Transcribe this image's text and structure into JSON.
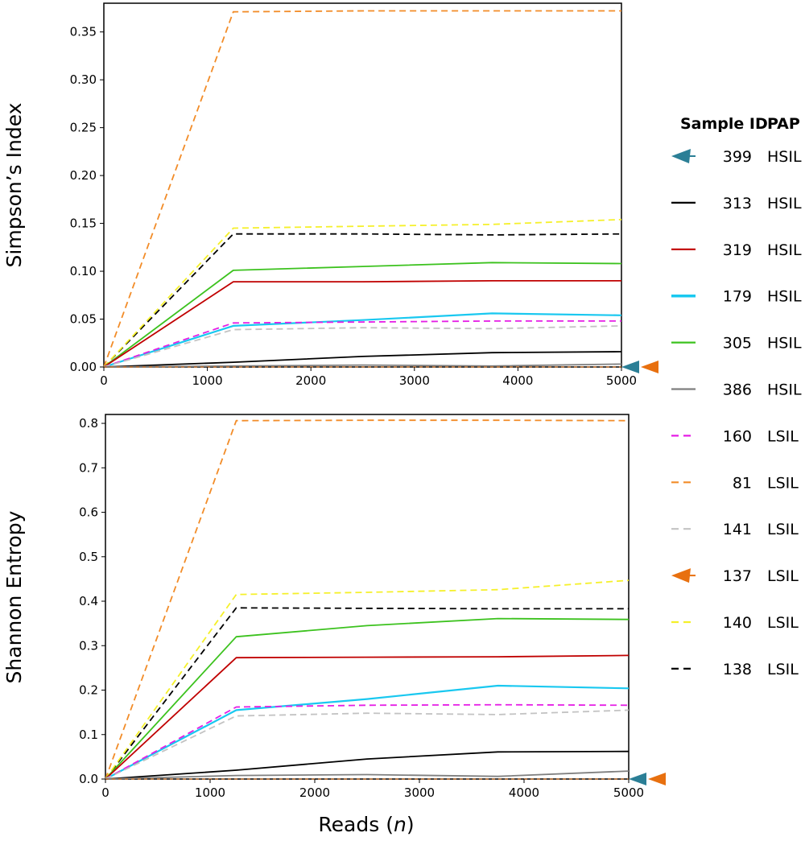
{
  "legend": {
    "header_id": "Sample ID",
    "header_pap": "PAP",
    "entries": [
      {
        "id": "399",
        "pap": "HSIL",
        "color": "#2b7f96",
        "dash": "marker"
      },
      {
        "id": "313",
        "pap": "HSIL",
        "color": "#000000",
        "dash": "solid"
      },
      {
        "id": "319",
        "pap": "HSIL",
        "color": "#c00000",
        "dash": "solid"
      },
      {
        "id": "179",
        "pap": "HSIL",
        "color": "#19c8f0",
        "dash": "solid"
      },
      {
        "id": "305",
        "pap": "HSIL",
        "color": "#3cc21e",
        "dash": "solid"
      },
      {
        "id": "386",
        "pap": "HSIL",
        "color": "#7f7f7f",
        "dash": "solid"
      },
      {
        "id": "160",
        "pap": "LSIL",
        "color": "#e51ee5",
        "dash": "dashed"
      },
      {
        "id": "81",
        "pap": "LSIL",
        "color": "#f28c28",
        "dash": "dashed"
      },
      {
        "id": "141",
        "pap": "LSIL",
        "color": "#c3c3c3",
        "dash": "dashed"
      },
      {
        "id": "137",
        "pap": "LSIL",
        "color": "#e8700f",
        "dash": "marker"
      },
      {
        "id": "140",
        "pap": "LSIL",
        "color": "#f5f02a",
        "dash": "dashed"
      },
      {
        "id": "138",
        "pap": "LSIL",
        "color": "#000000",
        "dash": "dashed"
      }
    ]
  },
  "chart_data": [
    {
      "type": "line",
      "ylabel": "Simpson’s Index",
      "xlabel": "",
      "xlim": [
        0,
        5000
      ],
      "ylim": [
        0,
        0.38
      ],
      "xticks": [
        0,
        1000,
        2000,
        3000,
        4000,
        5000
      ],
      "xtick_labels": [
        "0",
        "1000",
        "2000",
        "3000",
        "4000",
        "5000"
      ],
      "yticks": [
        0,
        0.05,
        0.1,
        0.15,
        0.2,
        0.25,
        0.3,
        0.35
      ],
      "ytick_labels": [
        "0.00",
        "0.05",
        "0.10",
        "0.15",
        "0.20",
        "0.25",
        "0.30",
        "0.35"
      ],
      "x": [
        0,
        1250,
        2500,
        3750,
        5000
      ],
      "series": [
        {
          "name": "399",
          "values": [
            0,
            0,
            0,
            0,
            0
          ]
        },
        {
          "name": "313",
          "values": [
            0,
            0.005,
            0.011,
            0.015,
            0.016
          ]
        },
        {
          "name": "319",
          "values": [
            0,
            0.089,
            0.089,
            0.09,
            0.09
          ]
        },
        {
          "name": "179",
          "values": [
            0,
            0.043,
            0.049,
            0.056,
            0.054
          ]
        },
        {
          "name": "305",
          "values": [
            0,
            0.101,
            0.105,
            0.109,
            0.108
          ]
        },
        {
          "name": "386",
          "values": [
            0,
            0.001,
            0.002,
            0.001,
            0.003
          ]
        },
        {
          "name": "160",
          "values": [
            0,
            0.046,
            0.047,
            0.048,
            0.048
          ]
        },
        {
          "name": "81",
          "values": [
            0,
            0.371,
            0.372,
            0.372,
            0.372
          ]
        },
        {
          "name": "141",
          "values": [
            0,
            0.039,
            0.041,
            0.04,
            0.043
          ]
        },
        {
          "name": "137",
          "values": [
            0,
            0,
            0,
            0,
            0
          ]
        },
        {
          "name": "140",
          "values": [
            0,
            0.145,
            0.147,
            0.149,
            0.154
          ]
        },
        {
          "name": "138",
          "values": [
            0,
            0.139,
            0.139,
            0.138,
            0.139
          ]
        }
      ]
    },
    {
      "type": "line",
      "ylabel": "Shannon Entropy",
      "xlabel": "Reads (n)",
      "xlim": [
        0,
        5000
      ],
      "ylim": [
        0,
        0.82
      ],
      "xticks": [
        0,
        1000,
        2000,
        3000,
        4000,
        5000
      ],
      "xtick_labels": [
        "0",
        "1000",
        "2000",
        "3000",
        "4000",
        "5000"
      ],
      "yticks": [
        0,
        0.1,
        0.2,
        0.3,
        0.4,
        0.5,
        0.6,
        0.7,
        0.8
      ],
      "ytick_labels": [
        "0.0",
        "0.1",
        "0.2",
        "0.3",
        "0.4",
        "0.5",
        "0.6",
        "0.7",
        "0.8"
      ],
      "x": [
        0,
        1250,
        2500,
        3750,
        5000
      ],
      "series": [
        {
          "name": "399",
          "values": [
            0,
            0,
            0,
            0,
            0
          ]
        },
        {
          "name": "313",
          "values": [
            0,
            0.02,
            0.045,
            0.061,
            0.062
          ]
        },
        {
          "name": "319",
          "values": [
            0,
            0.273,
            0.274,
            0.275,
            0.278
          ]
        },
        {
          "name": "179",
          "values": [
            0,
            0.155,
            0.18,
            0.21,
            0.204
          ]
        },
        {
          "name": "305",
          "values": [
            0,
            0.32,
            0.345,
            0.361,
            0.359
          ]
        },
        {
          "name": "386",
          "values": [
            0,
            0.008,
            0.01,
            0.006,
            0.018
          ]
        },
        {
          "name": "160",
          "values": [
            0,
            0.162,
            0.166,
            0.167,
            0.166
          ]
        },
        {
          "name": "81",
          "values": [
            0,
            0.806,
            0.807,
            0.807,
            0.806
          ]
        },
        {
          "name": "141",
          "values": [
            0,
            0.142,
            0.148,
            0.145,
            0.155
          ]
        },
        {
          "name": "137",
          "values": [
            0,
            0,
            0,
            0,
            0
          ]
        },
        {
          "name": "140",
          "values": [
            0,
            0.415,
            0.42,
            0.426,
            0.447
          ]
        },
        {
          "name": "138",
          "values": [
            0,
            0.385,
            0.384,
            0.383,
            0.383
          ]
        }
      ]
    }
  ],
  "xlabel_main": "Reads (",
  "xlabel_var": "n",
  "xlabel_end": ")"
}
